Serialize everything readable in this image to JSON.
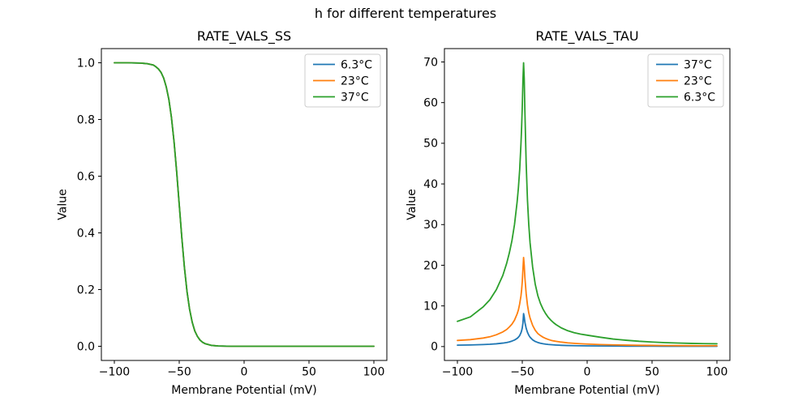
{
  "figure": {
    "suptitle": "h for different temperatures",
    "background": "#ffffff",
    "text_color": "#000000"
  },
  "palette": {
    "blue": "#1f77b4",
    "orange": "#ff7f0e",
    "green": "#2ca02c"
  },
  "chart_data": [
    {
      "id": "rate-vals-ss",
      "type": "line",
      "title": "RATE_VALS_SS",
      "xlabel": "Membrane Potential (mV)",
      "ylabel": "Value",
      "x_range": [
        -100,
        100
      ],
      "y_range": [
        0,
        1
      ],
      "grid": false,
      "legend_location": "upper-right",
      "note": "All three temperature curves coincide exactly; the 37°C (green, drawn last) trace is the visible one.",
      "xticks": {
        "values": [
          -100,
          -50,
          0,
          50,
          100
        ],
        "labels": [
          "−100",
          "−50",
          "0",
          "50",
          "100"
        ]
      },
      "yticks": {
        "values": [
          0,
          0.2,
          0.4,
          0.6,
          0.8,
          1.0
        ],
        "labels": [
          "0.0",
          "0.2",
          "0.4",
          "0.6",
          "0.8",
          "1.0"
        ]
      },
      "x": [
        -100,
        -90,
        -80,
        -75,
        -70,
        -68,
        -66,
        -64,
        -62,
        -60,
        -58,
        -56,
        -54,
        -52,
        -50,
        -48,
        -46,
        -44,
        -42,
        -40,
        -38,
        -36,
        -34,
        -32,
        -30,
        -25,
        -20,
        -10,
        0,
        25,
        50,
        100
      ],
      "series": [
        {
          "name": "6.3°C",
          "color": "#1f77b4",
          "y": [
            1.0,
            1.0,
            0.999,
            0.997,
            0.992,
            0.986,
            0.978,
            0.966,
            0.946,
            0.915,
            0.871,
            0.807,
            0.722,
            0.617,
            0.5,
            0.383,
            0.278,
            0.193,
            0.13,
            0.085,
            0.054,
            0.035,
            0.022,
            0.014,
            0.009,
            0.003,
            0.001,
            0.0,
            0.0,
            0.0,
            0.0,
            0.0
          ]
        },
        {
          "name": "23°C",
          "color": "#ff7f0e",
          "y": [
            1.0,
            1.0,
            0.999,
            0.997,
            0.992,
            0.986,
            0.978,
            0.966,
            0.946,
            0.915,
            0.871,
            0.807,
            0.722,
            0.617,
            0.5,
            0.383,
            0.278,
            0.193,
            0.13,
            0.085,
            0.054,
            0.035,
            0.022,
            0.014,
            0.009,
            0.003,
            0.001,
            0.0,
            0.0,
            0.0,
            0.0,
            0.0
          ]
        },
        {
          "name": "37°C",
          "color": "#2ca02c",
          "y": [
            1.0,
            1.0,
            0.999,
            0.997,
            0.992,
            0.986,
            0.978,
            0.966,
            0.946,
            0.915,
            0.871,
            0.807,
            0.722,
            0.617,
            0.5,
            0.383,
            0.278,
            0.193,
            0.13,
            0.085,
            0.054,
            0.035,
            0.022,
            0.014,
            0.009,
            0.003,
            0.001,
            0.0,
            0.0,
            0.0,
            0.0,
            0.0
          ]
        }
      ]
    },
    {
      "id": "rate-vals-tau",
      "type": "line",
      "title": "RATE_VALS_TAU",
      "xlabel": "Membrane Potential (mV)",
      "ylabel": "Value",
      "x_range": [
        -100,
        100
      ],
      "y_range": [
        0,
        70
      ],
      "grid": false,
      "legend_location": "upper-right",
      "note": "Sharp resonance peaks near -49 mV: 37°C peaks ~8, 23°C ~22, 6.3°C ~70.",
      "xticks": {
        "values": [
          -100,
          -50,
          0,
          50,
          100
        ],
        "labels": [
          "−100",
          "−50",
          "0",
          "50",
          "100"
        ]
      },
      "yticks": {
        "values": [
          0,
          10,
          20,
          30,
          40,
          50,
          60,
          70
        ],
        "labels": [
          "0",
          "10",
          "20",
          "30",
          "40",
          "50",
          "60",
          "70"
        ]
      },
      "x": [
        -100,
        -90,
        -80,
        -75,
        -70,
        -65,
        -62,
        -60,
        -58,
        -56,
        -54,
        -53,
        -52,
        -51,
        -50.5,
        -50,
        -49.5,
        -49,
        -48.5,
        -48,
        -47,
        -46,
        -45,
        -44,
        -42,
        -40,
        -38,
        -36,
        -34,
        -32,
        -30,
        -28,
        -26,
        -24,
        -22,
        -20,
        -15,
        -10,
        -5,
        0,
        10,
        20,
        30,
        40,
        50,
        60,
        70,
        80,
        90,
        100
      ],
      "series": [
        {
          "name": "37°C",
          "color": "#1f77b4",
          "y": [
            0.35,
            0.4,
            0.5,
            0.57,
            0.68,
            0.85,
            1.0,
            1.15,
            1.35,
            1.6,
            2.0,
            2.3,
            2.7,
            3.4,
            3.9,
            4.6,
            5.8,
            8.1,
            7.3,
            6.0,
            4.5,
            3.5,
            2.8,
            2.3,
            1.65,
            1.25,
            1.0,
            0.82,
            0.7,
            0.6,
            0.52,
            0.46,
            0.41,
            0.37,
            0.34,
            0.31,
            0.26,
            0.22,
            0.19,
            0.17,
            0.14,
            0.12,
            0.11,
            0.1,
            0.09,
            0.085,
            0.08,
            0.075,
            0.072,
            0.07
          ]
        },
        {
          "name": "23°C",
          "color": "#ff7f0e",
          "y": [
            1.5,
            1.7,
            2.1,
            2.4,
            2.9,
            3.6,
            4.2,
            4.8,
            5.5,
            6.5,
            8.0,
            9.0,
            10.5,
            12.5,
            14.0,
            16.0,
            19.0,
            21.9,
            20.0,
            17.0,
            13.0,
            10.2,
            8.3,
            7.0,
            5.2,
            4.0,
            3.2,
            2.7,
            2.3,
            2.0,
            1.75,
            1.55,
            1.4,
            1.3,
            1.2,
            1.1,
            0.92,
            0.8,
            0.7,
            0.62,
            0.5,
            0.42,
            0.36,
            0.31,
            0.28,
            0.25,
            0.23,
            0.21,
            0.2,
            0.19
          ]
        },
        {
          "name": "6.3°C",
          "color": "#2ca02c",
          "y": [
            6.2,
            7.3,
            9.8,
            11.5,
            14.0,
            17.5,
            20.5,
            23.0,
            26.0,
            30.0,
            35.5,
            39.0,
            43.5,
            50.0,
            54.0,
            59.0,
            65.5,
            69.8,
            66.0,
            58.0,
            45.0,
            36.0,
            30.0,
            25.5,
            19.5,
            15.3,
            12.5,
            10.6,
            9.2,
            8.1,
            7.2,
            6.5,
            5.9,
            5.4,
            5.0,
            4.6,
            3.9,
            3.4,
            3.05,
            2.8,
            2.3,
            1.85,
            1.55,
            1.3,
            1.12,
            0.97,
            0.86,
            0.78,
            0.72,
            0.68
          ]
        }
      ]
    }
  ]
}
